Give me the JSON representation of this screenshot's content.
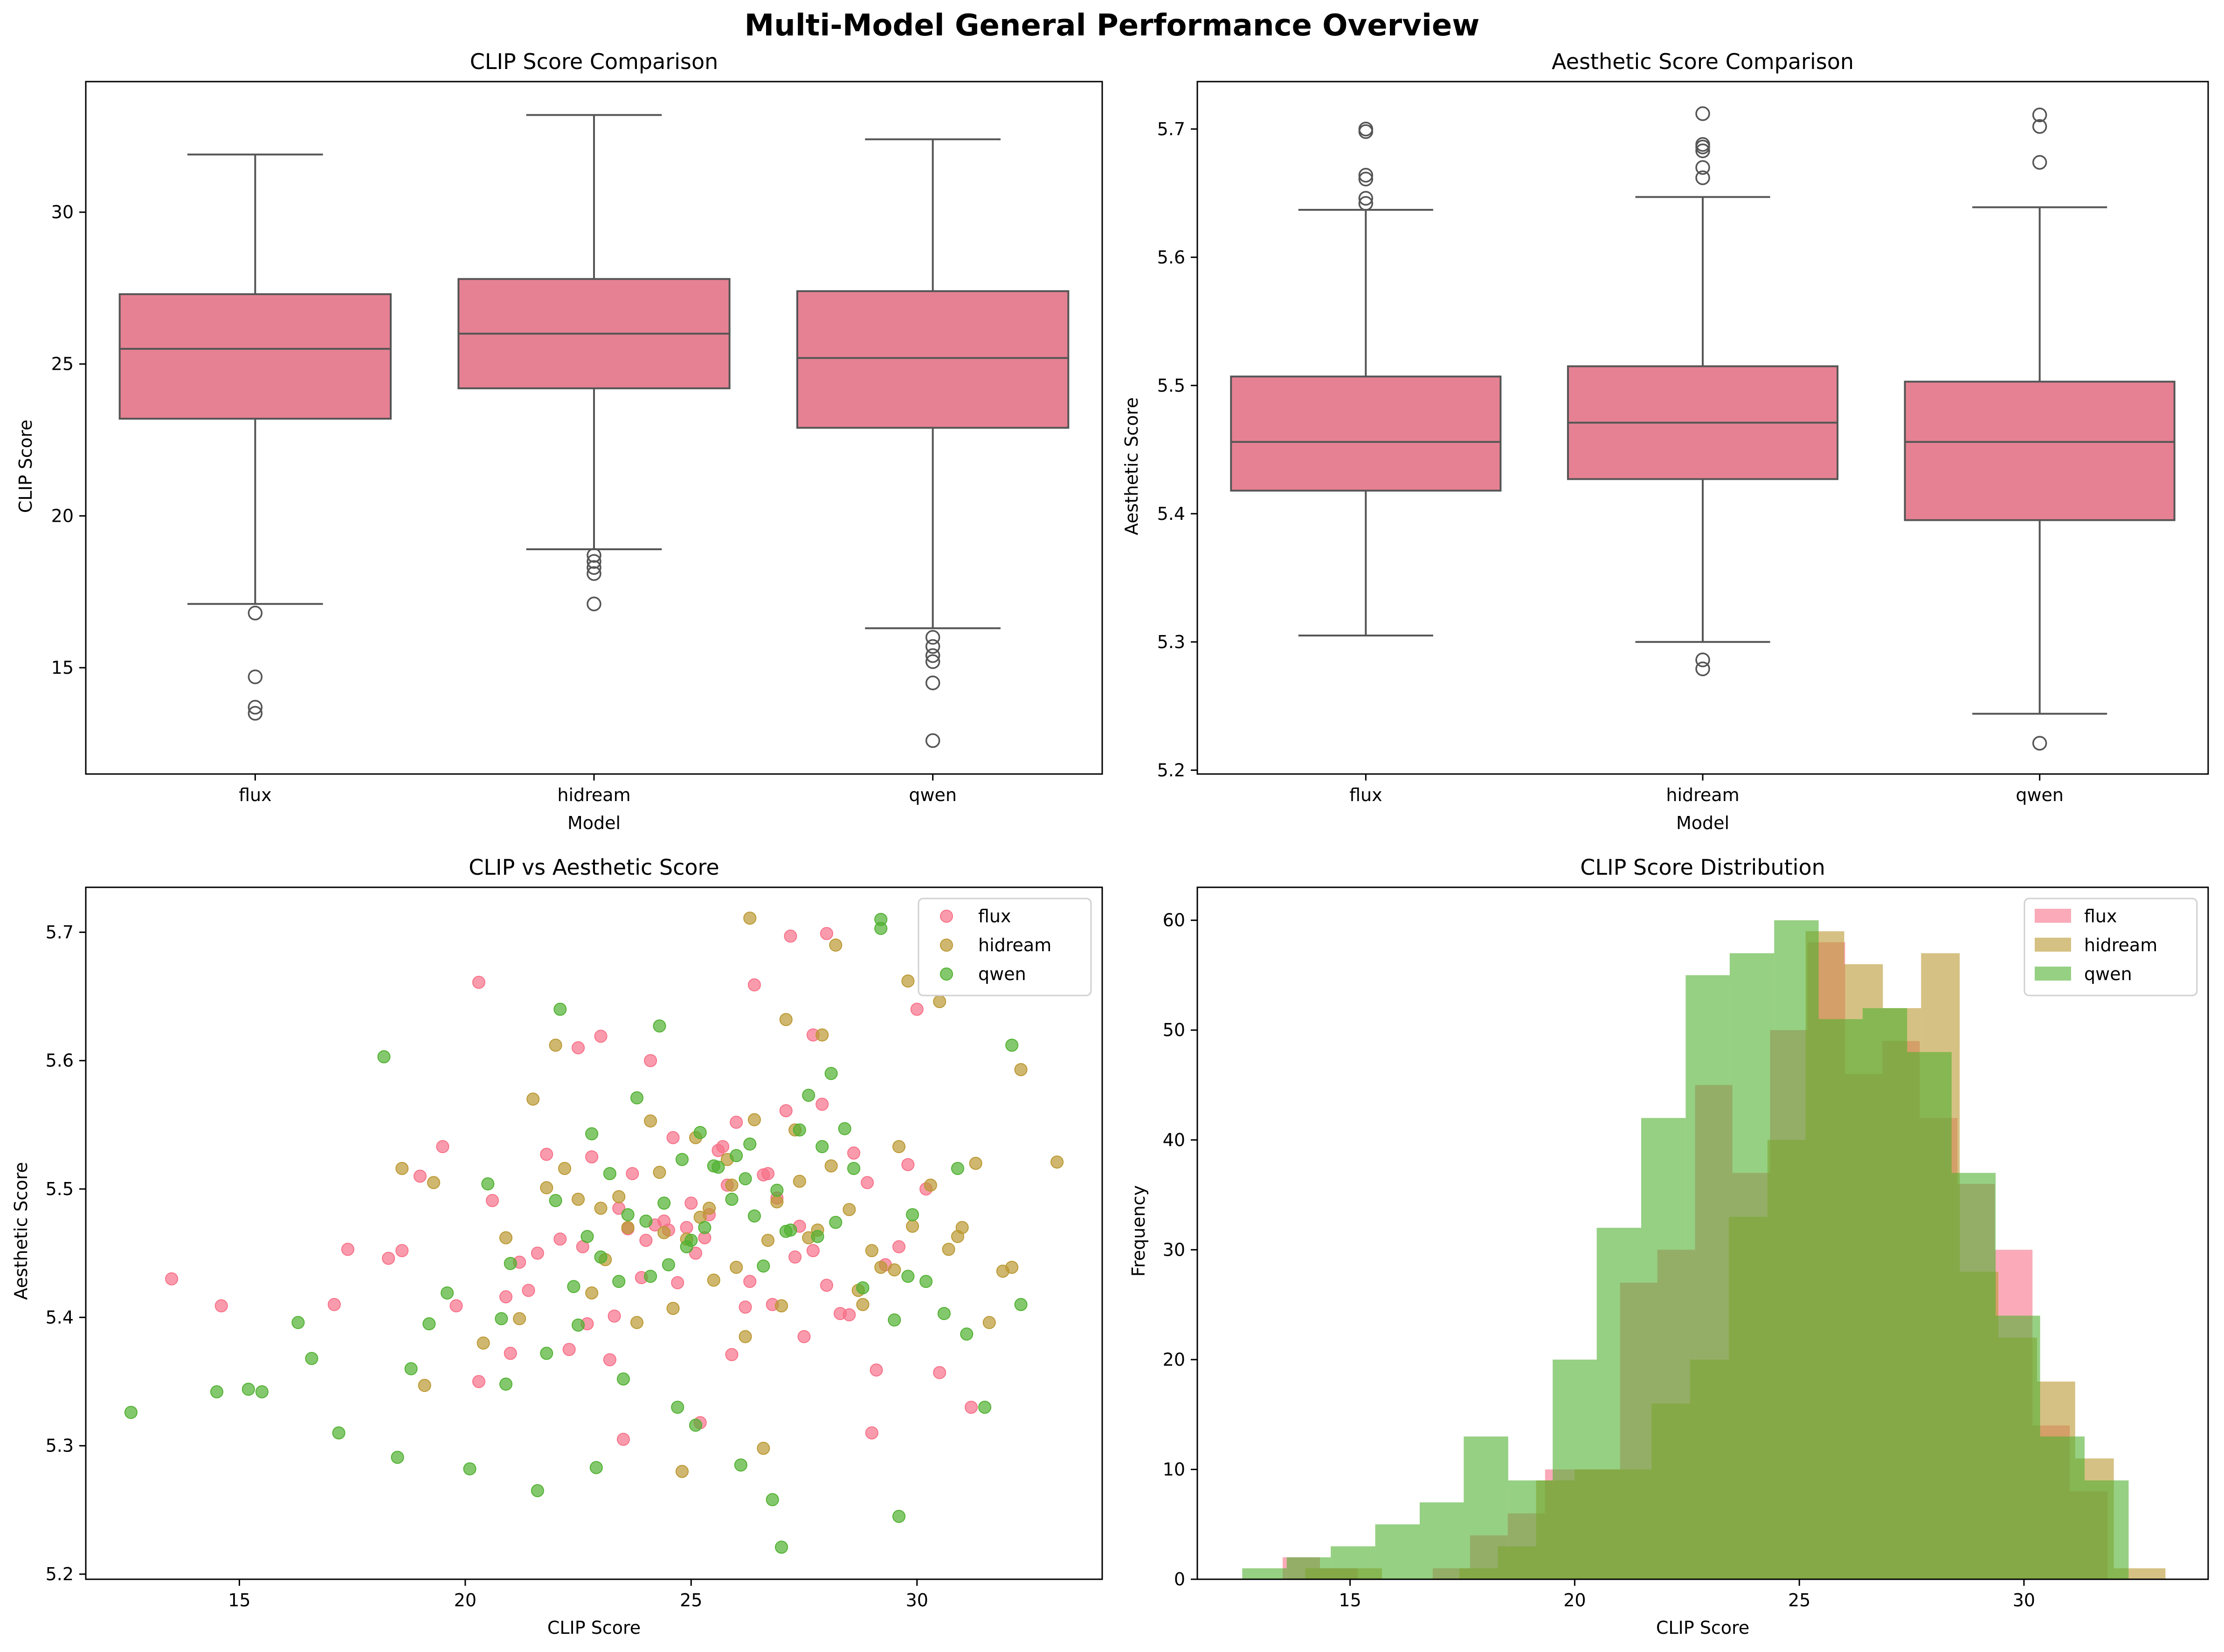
{
  "figure": {
    "title": "Multi-Model General Performance Overview"
  },
  "colors": {
    "box_fill": "#e68193",
    "box_line": "#555555",
    "flux": "#f77189",
    "hidream": "#bb9832",
    "qwen": "#50b131"
  },
  "chart_data": [
    {
      "type": "box",
      "title": "CLIP Score Comparison",
      "xlabel": "Model",
      "ylabel": "CLIP Score",
      "ylim": [
        11.5,
        34.3
      ],
      "yticks": [
        15,
        20,
        25,
        30
      ],
      "categories": [
        "flux",
        "hidream",
        "qwen"
      ],
      "boxes": [
        {
          "name": "flux",
          "whisker_low": 17.1,
          "q1": 23.2,
          "median": 25.5,
          "q3": 27.3,
          "whisker_high": 31.9,
          "outliers": [
            16.8,
            14.7,
            13.7,
            13.5
          ]
        },
        {
          "name": "hidream",
          "whisker_low": 18.9,
          "q1": 24.2,
          "median": 26.0,
          "q3": 27.8,
          "whisker_high": 33.2,
          "outliers": [
            18.7,
            18.5,
            18.3,
            18.1,
            17.1
          ]
        },
        {
          "name": "qwen",
          "whisker_low": 16.3,
          "q1": 22.9,
          "median": 25.2,
          "q3": 27.4,
          "whisker_high": 32.4,
          "outliers": [
            16.0,
            15.7,
            15.4,
            15.2,
            14.5,
            12.6
          ]
        }
      ]
    },
    {
      "type": "box",
      "title": "Aesthetic Score Comparison",
      "xlabel": "Model",
      "ylabel": "Aesthetic Score",
      "ylim": [
        5.197,
        5.737
      ],
      "yticks": [
        5.2,
        5.3,
        5.4,
        5.5,
        5.6,
        5.7
      ],
      "ytick_labels": [
        "5.2",
        "5.3",
        "5.4",
        "5.5",
        "5.6",
        "5.7"
      ],
      "categories": [
        "flux",
        "hidream",
        "qwen"
      ],
      "boxes": [
        {
          "name": "flux",
          "whisker_low": 5.305,
          "q1": 5.418,
          "median": 5.456,
          "q3": 5.507,
          "whisker_high": 5.637,
          "outliers": [
            5.642,
            5.646,
            5.661,
            5.664,
            5.698,
            5.7
          ]
        },
        {
          "name": "hidream",
          "whisker_low": 5.3,
          "q1": 5.427,
          "median": 5.471,
          "q3": 5.515,
          "whisker_high": 5.647,
          "outliers": [
            5.662,
            5.67,
            5.683,
            5.686,
            5.688,
            5.712,
            5.286,
            5.279
          ]
        },
        {
          "name": "qwen",
          "whisker_low": 5.244,
          "q1": 5.395,
          "median": 5.456,
          "q3": 5.503,
          "whisker_high": 5.639,
          "outliers": [
            5.674,
            5.702,
            5.711,
            5.221
          ]
        }
      ]
    },
    {
      "type": "scatter",
      "title": "CLIP vs Aesthetic Score",
      "xlabel": "CLIP Score",
      "ylabel": "Aesthetic Score",
      "xlim": [
        11.6,
        34.1
      ],
      "ylim": [
        5.196,
        5.735
      ],
      "xticks": [
        15,
        20,
        25,
        30
      ],
      "yticks": [
        5.2,
        5.3,
        5.4,
        5.5,
        5.6,
        5.7
      ],
      "ytick_labels": [
        "5.2",
        "5.3",
        "5.4",
        "5.5",
        "5.6",
        "5.7"
      ],
      "legend_position": "top-right",
      "series": [
        {
          "name": "flux",
          "x": [
            13.5,
            14.6,
            20.3,
            27.2,
            28.0,
            23.5,
            25.2,
            29.0,
            21.8,
            22.5,
            30.0,
            26.4,
            23.0,
            24.1,
            19.5,
            27.7,
            18.6,
            17.4,
            17.1,
            22.6,
            24.4,
            20.6,
            26.8,
            28.5,
            21.4,
            25.1,
            29.3,
            23.2,
            30.5,
            31.2,
            20.3,
            25.9,
            27.5,
            28.9,
            26.6,
            24.2,
            22.8,
            23.6,
            27.7,
            25.7,
            21.0,
            19.0,
            26.2,
            30.2,
            24.9,
            28.0,
            23.3,
            22.3,
            26.7,
            27.1,
            24.6,
            25.4,
            29.6,
            21.6,
            23.9,
            20.9,
            27.9,
            25.0,
            26.3,
            24.0,
            28.3,
            22.1,
            23.7,
            25.6,
            29.1,
            24.5,
            26.0,
            22.7,
            27.4,
            28.6,
            18.3,
            19.8,
            21.2,
            23.4,
            25.3,
            26.9,
            24.7,
            25.8,
            27.3,
            29.8
          ],
          "y": [
            5.43,
            5.409,
            5.661,
            5.697,
            5.699,
            5.305,
            5.318,
            5.31,
            5.527,
            5.61,
            5.64,
            5.659,
            5.619,
            5.6,
            5.533,
            5.62,
            5.452,
            5.453,
            5.41,
            5.455,
            5.475,
            5.491,
            5.41,
            5.402,
            5.421,
            5.45,
            5.441,
            5.367,
            5.357,
            5.33,
            5.35,
            5.371,
            5.385,
            5.505,
            5.511,
            5.472,
            5.525,
            5.469,
            5.452,
            5.533,
            5.372,
            5.51,
            5.408,
            5.5,
            5.47,
            5.425,
            5.401,
            5.375,
            5.512,
            5.561,
            5.54,
            5.48,
            5.455,
            5.45,
            5.431,
            5.416,
            5.566,
            5.489,
            5.428,
            5.46,
            5.403,
            5.461,
            5.512,
            5.53,
            5.359,
            5.468,
            5.552,
            5.395,
            5.471,
            5.528,
            5.446,
            5.409,
            5.443,
            5.485,
            5.462,
            5.493,
            5.427,
            5.503,
            5.447,
            5.519
          ]
        },
        {
          "name": "hidream",
          "x": [
            26.3,
            28.2,
            29.8,
            22.0,
            21.5,
            30.5,
            27.1,
            33.1,
            18.6,
            19.3,
            32.1,
            31.9,
            31.6,
            24.8,
            26.6,
            22.5,
            27.9,
            24.1,
            25.4,
            29.0,
            23.6,
            28.7,
            30.9,
            20.4,
            26.0,
            24.6,
            27.4,
            25.8,
            23.1,
            21.2,
            28.5,
            29.5,
            31.3,
            32.3,
            25.1,
            27.6,
            22.8,
            26.9,
            24.3,
            29.9,
            23.8,
            20.9,
            26.4,
            28.1,
            25.5,
            27.0,
            30.3,
            21.8,
            24.9,
            19.1,
            25.9,
            27.8,
            29.2,
            23.4,
            26.7,
            22.2,
            28.8,
            24.4,
            30.7,
            25.2,
            27.3,
            23.0,
            29.6,
            31.0,
            26.2
          ],
          "y": [
            5.711,
            5.69,
            5.662,
            5.612,
            5.57,
            5.646,
            5.632,
            5.521,
            5.516,
            5.505,
            5.439,
            5.436,
            5.396,
            5.28,
            5.298,
            5.492,
            5.62,
            5.553,
            5.485,
            5.452,
            5.47,
            5.421,
            5.463,
            5.38,
            5.439,
            5.407,
            5.506,
            5.523,
            5.445,
            5.399,
            5.484,
            5.437,
            5.52,
            5.593,
            5.54,
            5.462,
            5.419,
            5.49,
            5.513,
            5.471,
            5.396,
            5.462,
            5.554,
            5.518,
            5.429,
            5.409,
            5.503,
            5.501,
            5.461,
            5.347,
            5.503,
            5.468,
            5.439,
            5.494,
            5.46,
            5.516,
            5.41,
            5.466,
            5.453,
            5.478,
            5.546,
            5.485,
            5.533,
            5.47,
            5.385
          ]
        },
        {
          "name": "qwen",
          "x": [
            12.6,
            15.5,
            18.2,
            22.1,
            29.2,
            29.2,
            27.0,
            29.6,
            32.3,
            32.1,
            31.5,
            20.1,
            26.1,
            24.3,
            23.8,
            18.5,
            17.2,
            16.3,
            14.5,
            15.2,
            16.6,
            20.9,
            21.6,
            26.8,
            22.9,
            23.5,
            25.1,
            24.7,
            26.3,
            27.6,
            28.1,
            29.9,
            30.6,
            28.4,
            25.6,
            22.4,
            21.0,
            19.6,
            24.0,
            25.9,
            27.2,
            26.6,
            23.2,
            24.9,
            22.7,
            28.8,
            30.2,
            31.1,
            27.9,
            25.3,
            24.5,
            23.6,
            26.0,
            22.0,
            20.5,
            19.2,
            27.4,
            28.6,
            25.0,
            26.9,
            24.1,
            23.0,
            29.5,
            21.8,
            26.4,
            25.5,
            27.8,
            22.5,
            24.8,
            23.4,
            28.2,
            29.8,
            20.8,
            25.2,
            26.2,
            24.4,
            27.1,
            22.8,
            30.9,
            18.8
          ],
          "y": [
            5.326,
            5.342,
            5.603,
            5.64,
            5.71,
            5.703,
            5.221,
            5.245,
            5.41,
            5.612,
            5.33,
            5.282,
            5.285,
            5.627,
            5.571,
            5.291,
            5.31,
            5.396,
            5.342,
            5.344,
            5.368,
            5.348,
            5.265,
            5.258,
            5.283,
            5.352,
            5.316,
            5.33,
            5.535,
            5.573,
            5.59,
            5.48,
            5.403,
            5.547,
            5.517,
            5.424,
            5.442,
            5.419,
            5.475,
            5.492,
            5.468,
            5.44,
            5.512,
            5.455,
            5.463,
            5.423,
            5.428,
            5.387,
            5.533,
            5.47,
            5.441,
            5.48,
            5.526,
            5.491,
            5.504,
            5.395,
            5.546,
            5.516,
            5.46,
            5.499,
            5.432,
            5.447,
            5.398,
            5.372,
            5.479,
            5.518,
            5.463,
            5.394,
            5.523,
            5.428,
            5.474,
            5.432,
            5.399,
            5.544,
            5.508,
            5.489,
            5.467,
            5.543,
            5.516,
            5.36
          ]
        }
      ]
    },
    {
      "type": "histogram",
      "title": "CLIP Score Distribution",
      "xlabel": "CLIP Score",
      "ylabel": "Frequency",
      "xlim": [
        11.6,
        34.1
      ],
      "ylim": [
        0,
        63
      ],
      "xticks": [
        15,
        20,
        25,
        30
      ],
      "yticks": [
        0,
        10,
        20,
        30,
        40,
        50,
        60
      ],
      "legend_position": "top-right",
      "series": [
        {
          "name": "flux",
          "bin_edges": [
            13.5,
            14.33,
            15.17,
            16.0,
            16.84,
            17.67,
            18.51,
            19.34,
            20.18,
            21.01,
            21.84,
            22.68,
            23.51,
            24.35,
            25.18,
            26.02,
            26.85,
            27.68,
            28.52,
            29.35,
            30.19,
            31.02,
            31.86
          ],
          "counts": [
            2,
            1,
            0,
            0,
            1,
            4,
            6,
            10,
            10,
            27,
            30,
            45,
            37,
            50,
            58,
            46,
            49,
            42,
            36,
            30,
            14,
            8
          ]
        },
        {
          "name": "hidream",
          "bin_edges": [
            14.0,
            14.86,
            15.71,
            16.57,
            17.43,
            18.29,
            19.14,
            20.0,
            20.86,
            21.71,
            22.57,
            23.43,
            24.29,
            25.14,
            26.0,
            26.86,
            27.71,
            28.57,
            29.43,
            30.29,
            31.14,
            32.0,
            33.15
          ],
          "counts": [
            1,
            1,
            0,
            0,
            1,
            3,
            9,
            10,
            10,
            16,
            20,
            33,
            40,
            59,
            56,
            52,
            57,
            28,
            22,
            18,
            11,
            1
          ]
        },
        {
          "name": "qwen",
          "bin_edges": [
            12.6,
            13.59,
            14.57,
            15.56,
            16.55,
            17.53,
            18.52,
            19.51,
            20.49,
            21.48,
            22.47,
            23.45,
            24.44,
            25.43,
            26.41,
            27.4,
            28.39,
            29.37,
            30.36,
            31.35,
            32.33
          ],
          "counts": [
            1,
            2,
            3,
            5,
            7,
            13,
            9,
            20,
            32,
            42,
            55,
            57,
            60,
            51,
            52,
            48,
            37,
            24,
            13,
            9
          ]
        }
      ]
    }
  ]
}
